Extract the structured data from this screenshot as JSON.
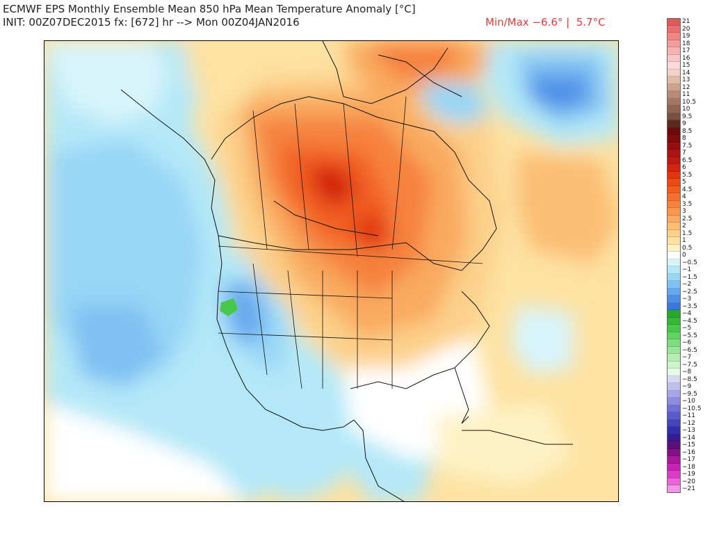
{
  "header": {
    "line1": "ECMWF EPS Monthly Ensemble Mean 850 hPa Mean Temperature Anomaly [°C]",
    "line2": "INIT: 00Z07DEC2015 fx: [672] hr --> Mon 00Z04JAN2016",
    "minmax": "Min/Max −6.6° |  5.7°C"
  },
  "legend": {
    "levels": [
      {
        "label": "21",
        "color": "#e05a5a"
      },
      {
        "label": "20",
        "color": "#e87070"
      },
      {
        "label": "19",
        "color": "#ee8686"
      },
      {
        "label": "18",
        "color": "#f29c9c"
      },
      {
        "label": "17",
        "color": "#f6b3b3"
      },
      {
        "label": "16",
        "color": "#f8c6c6"
      },
      {
        "label": "15",
        "color": "#fbdada"
      },
      {
        "label": "14",
        "color": "#f2d2c9"
      },
      {
        "label": "13",
        "color": "#e2baa8"
      },
      {
        "label": "12",
        "color": "#cfa28d"
      },
      {
        "label": "11",
        "color": "#b88a75"
      },
      {
        "label": "10.5",
        "color": "#a47562"
      },
      {
        "label": "10",
        "color": "#8f6350"
      },
      {
        "label": "9.5",
        "color": "#7a5141"
      },
      {
        "label": "9",
        "color": "#5c2a20"
      },
      {
        "label": "8.5",
        "color": "#6a0a0a"
      },
      {
        "label": "8",
        "color": "#7e0c0c"
      },
      {
        "label": "7.5",
        "color": "#941010"
      },
      {
        "label": "7",
        "color": "#aa1414"
      },
      {
        "label": "6.5",
        "color": "#be1a12"
      },
      {
        "label": "6",
        "color": "#d2240e"
      },
      {
        "label": "5.5",
        "color": "#e2340e"
      },
      {
        "label": "5",
        "color": "#ee4a16"
      },
      {
        "label": "4.5",
        "color": "#f25e22"
      },
      {
        "label": "4",
        "color": "#f47030"
      },
      {
        "label": "3.5",
        "color": "#f6823e"
      },
      {
        "label": "3",
        "color": "#f8964e"
      },
      {
        "label": "2.5",
        "color": "#f9aa60"
      },
      {
        "label": "2",
        "color": "#fbbe74"
      },
      {
        "label": "1.5",
        "color": "#fcd08a"
      },
      {
        "label": "1",
        "color": "#fde2a2"
      },
      {
        "label": "0.5",
        "color": "#fef2c4"
      },
      {
        "label": "0",
        "color": "#ffffff"
      },
      {
        "label": "−0.5",
        "color": "#d8f4fb"
      },
      {
        "label": "−1",
        "color": "#b4e8f8"
      },
      {
        "label": "−1.5",
        "color": "#98d6f6"
      },
      {
        "label": "−2",
        "color": "#80c0f2"
      },
      {
        "label": "−2.5",
        "color": "#66a8ee"
      },
      {
        "label": "−3",
        "color": "#4e90e8"
      },
      {
        "label": "−3.5",
        "color": "#3c78dc"
      },
      {
        "label": "−4",
        "color": "#2aa62a"
      },
      {
        "label": "−4.5",
        "color": "#36b836"
      },
      {
        "label": "−5",
        "color": "#48c848"
      },
      {
        "label": "−5.5",
        "color": "#62d462"
      },
      {
        "label": "−6",
        "color": "#7ede7e"
      },
      {
        "label": "−6.5",
        "color": "#9ae69a"
      },
      {
        "label": "−7",
        "color": "#b4eeb4"
      },
      {
        "label": "−7.5",
        "color": "#cef4ce"
      },
      {
        "label": "−8",
        "color": "#e6faea"
      },
      {
        "label": "−8.5",
        "color": "#d8d8f4"
      },
      {
        "label": "−9",
        "color": "#c0c0ee"
      },
      {
        "label": "−9.5",
        "color": "#a6a6e8"
      },
      {
        "label": "−10",
        "color": "#8c8ce0"
      },
      {
        "label": "−10.5",
        "color": "#7272d6"
      },
      {
        "label": "−11",
        "color": "#5a5aca"
      },
      {
        "label": "−12",
        "color": "#4444bc"
      },
      {
        "label": "−13",
        "color": "#3030a8"
      },
      {
        "label": "−14",
        "color": "#3a1a90"
      },
      {
        "label": "−15",
        "color": "#5a1078"
      },
      {
        "label": "−16",
        "color": "#84108a"
      },
      {
        "label": "−17",
        "color": "#a8189e"
      },
      {
        "label": "−18",
        "color": "#c624b6"
      },
      {
        "label": "−19",
        "color": "#dc3cc8"
      },
      {
        "label": "−20",
        "color": "#ea64da"
      },
      {
        "label": "−21",
        "color": "#f494ea"
      }
    ]
  }
}
